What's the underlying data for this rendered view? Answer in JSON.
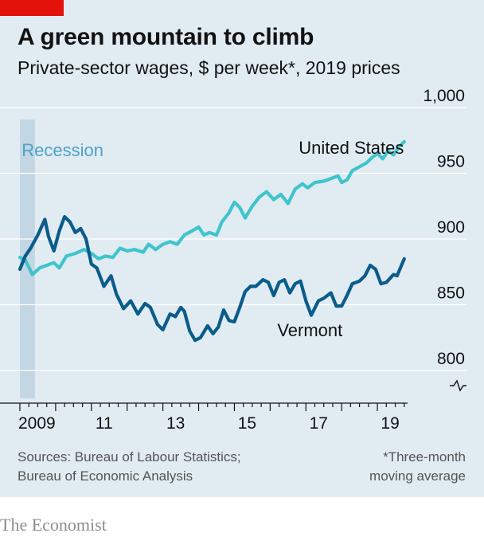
{
  "header": {
    "title": "A green mountain to climb",
    "subtitle": "Private-sector wages, $ per week*, 2019 prices"
  },
  "footer": {
    "sources_line1": "Sources: Bureau of Labour Statistics;",
    "sources_line2": "Bureau of Economic Analysis",
    "note_line1": "*Three-month",
    "note_line2": "moving average"
  },
  "brand": "The Economist",
  "colors": {
    "accent_red": "#e3120b",
    "background": "#e1ebf2",
    "united_states": "#3fc4cc",
    "vermont": "#0a5c8a",
    "recession": "#c3d6e3",
    "recession_text": "#4ba3c7"
  },
  "chart_data": {
    "type": "line",
    "title": "A green mountain to climb",
    "subtitle": "Private-sector wages, $ per week*, 2019 prices",
    "x_tick_labels": [
      "2009",
      "11",
      "13",
      "15",
      "17",
      "19"
    ],
    "x_ticks": [
      2009,
      2011,
      2013,
      2015,
      2017,
      2019
    ],
    "xlim": [
      2009.0,
      2019.8
    ],
    "ylim": [
      790,
      1000
    ],
    "y_ticks": [
      800,
      850,
      900,
      950,
      1000
    ],
    "y_tick_labels": [
      "800",
      "850",
      "900",
      "950",
      "1,000"
    ],
    "y_axis_side": "right",
    "y_axis_break": true,
    "grid": true,
    "shaded_regions": [
      {
        "label": "Recession",
        "start": 2009.0,
        "end": 2009.42
      }
    ],
    "series": [
      {
        "name": "United States",
        "points": [
          [
            2009.0,
            886
          ],
          [
            2009.15,
            884
          ],
          [
            2009.35,
            873
          ],
          [
            2009.55,
            878
          ],
          [
            2009.75,
            880
          ],
          [
            2009.95,
            882
          ],
          [
            2010.1,
            878
          ],
          [
            2010.3,
            887
          ],
          [
            2010.55,
            889
          ],
          [
            2010.8,
            892
          ],
          [
            2011.0,
            889
          ],
          [
            2011.2,
            885
          ],
          [
            2011.4,
            887
          ],
          [
            2011.6,
            886
          ],
          [
            2011.8,
            893
          ],
          [
            2012.0,
            891
          ],
          [
            2012.2,
            892
          ],
          [
            2012.45,
            890
          ],
          [
            2012.6,
            896
          ],
          [
            2012.8,
            892
          ],
          [
            2013.0,
            896
          ],
          [
            2013.2,
            898
          ],
          [
            2013.4,
            896
          ],
          [
            2013.6,
            903
          ],
          [
            2013.8,
            906
          ],
          [
            2014.0,
            909
          ],
          [
            2014.15,
            903
          ],
          [
            2014.3,
            905
          ],
          [
            2014.5,
            903
          ],
          [
            2014.65,
            913
          ],
          [
            2014.85,
            920
          ],
          [
            2015.0,
            928
          ],
          [
            2015.15,
            924
          ],
          [
            2015.3,
            916
          ],
          [
            2015.5,
            925
          ],
          [
            2015.7,
            932
          ],
          [
            2015.9,
            936
          ],
          [
            2016.1,
            930
          ],
          [
            2016.3,
            934
          ],
          [
            2016.5,
            927
          ],
          [
            2016.7,
            938
          ],
          [
            2016.9,
            942
          ],
          [
            2017.05,
            939
          ],
          [
            2017.25,
            943
          ],
          [
            2017.5,
            944
          ],
          [
            2017.7,
            946
          ],
          [
            2017.9,
            948
          ],
          [
            2018.0,
            943
          ],
          [
            2018.15,
            945
          ],
          [
            2018.3,
            952
          ],
          [
            2018.5,
            955
          ],
          [
            2018.7,
            958
          ],
          [
            2018.85,
            962
          ],
          [
            2019.0,
            965
          ],
          [
            2019.15,
            961
          ],
          [
            2019.3,
            967
          ],
          [
            2019.45,
            964
          ],
          [
            2019.6,
            970
          ],
          [
            2019.75,
            974
          ]
        ]
      },
      {
        "name": "Vermont",
        "points": [
          [
            2009.0,
            877
          ],
          [
            2009.15,
            887
          ],
          [
            2009.3,
            893
          ],
          [
            2009.5,
            903
          ],
          [
            2009.7,
            915
          ],
          [
            2009.8,
            902
          ],
          [
            2009.95,
            891
          ],
          [
            2010.1,
            906
          ],
          [
            2010.25,
            917
          ],
          [
            2010.4,
            913
          ],
          [
            2010.55,
            905
          ],
          [
            2010.7,
            908
          ],
          [
            2010.85,
            900
          ],
          [
            2011.0,
            881
          ],
          [
            2011.15,
            878
          ],
          [
            2011.35,
            864
          ],
          [
            2011.55,
            872
          ],
          [
            2011.7,
            858
          ],
          [
            2011.9,
            847
          ],
          [
            2012.1,
            853
          ],
          [
            2012.3,
            843
          ],
          [
            2012.5,
            851
          ],
          [
            2012.65,
            848
          ],
          [
            2012.85,
            835
          ],
          [
            2013.0,
            831
          ],
          [
            2013.2,
            843
          ],
          [
            2013.35,
            841
          ],
          [
            2013.5,
            848
          ],
          [
            2013.6,
            845
          ],
          [
            2013.75,
            830
          ],
          [
            2013.9,
            823
          ],
          [
            2014.05,
            825
          ],
          [
            2014.25,
            834
          ],
          [
            2014.4,
            828
          ],
          [
            2014.55,
            833
          ],
          [
            2014.7,
            846
          ],
          [
            2014.85,
            838
          ],
          [
            2015.0,
            837
          ],
          [
            2015.15,
            848
          ],
          [
            2015.3,
            860
          ],
          [
            2015.45,
            864
          ],
          [
            2015.6,
            864
          ],
          [
            2015.8,
            869
          ],
          [
            2015.95,
            867
          ],
          [
            2016.1,
            857
          ],
          [
            2016.25,
            867
          ],
          [
            2016.4,
            869
          ],
          [
            2016.55,
            859
          ],
          [
            2016.7,
            866
          ],
          [
            2016.85,
            868
          ],
          [
            2017.0,
            853
          ],
          [
            2017.15,
            842
          ],
          [
            2017.35,
            853
          ],
          [
            2017.5,
            855
          ],
          [
            2017.7,
            859
          ],
          [
            2017.85,
            849
          ],
          [
            2018.0,
            849
          ],
          [
            2018.15,
            857
          ],
          [
            2018.3,
            866
          ],
          [
            2018.5,
            868
          ],
          [
            2018.65,
            872
          ],
          [
            2018.8,
            880
          ],
          [
            2018.95,
            877
          ],
          [
            2019.1,
            866
          ],
          [
            2019.25,
            867
          ],
          [
            2019.45,
            873
          ],
          [
            2019.55,
            872
          ],
          [
            2019.75,
            885
          ]
        ]
      }
    ],
    "annotations": [
      {
        "text": "United States",
        "x": 2016.8,
        "y": 965
      },
      {
        "text": "Vermont",
        "x": 2016.2,
        "y": 826
      },
      {
        "text": "Recession",
        "x": 2009.05,
        "y": 963
      }
    ]
  }
}
